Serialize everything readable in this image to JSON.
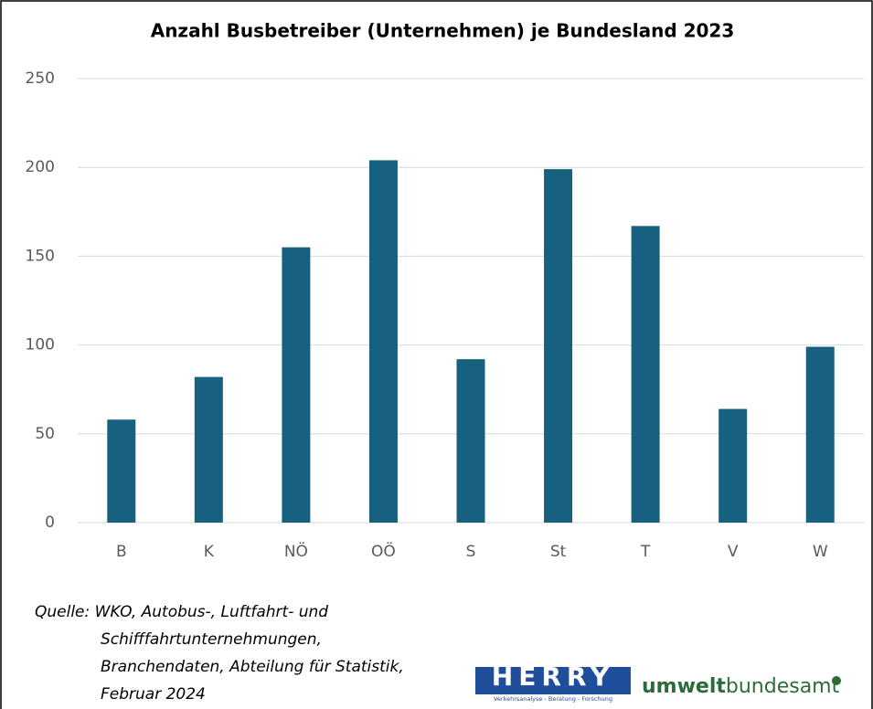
{
  "chart_data": {
    "type": "bar",
    "title": "Anzahl Busbetreiber (Unternehmen) je Bundesland 2023",
    "categories": [
      "B",
      "K",
      "NÖ",
      "OÖ",
      "S",
      "St",
      "T",
      "V",
      "W"
    ],
    "values": [
      58,
      82,
      155,
      204,
      92,
      199,
      167,
      64,
      99
    ],
    "color": "#17607f",
    "ylim": [
      0,
      250
    ],
    "yticks": [
      0,
      50,
      100,
      150,
      200,
      250
    ],
    "grid": true
  },
  "source": [
    "Quelle: WKO, Autobus-, Luftfahrt- und",
    "Schifffahrtunternehmungen,",
    "Branchendaten, Abteilung für Statistik,",
    "Februar 2024"
  ],
  "logos": {
    "herry": "HERRY",
    "herry_tagline": "Verkehrsanalyse - Beratung - Forschung",
    "umwelt_bold": "umwelt",
    "umwelt_rest": "bundesamt"
  }
}
